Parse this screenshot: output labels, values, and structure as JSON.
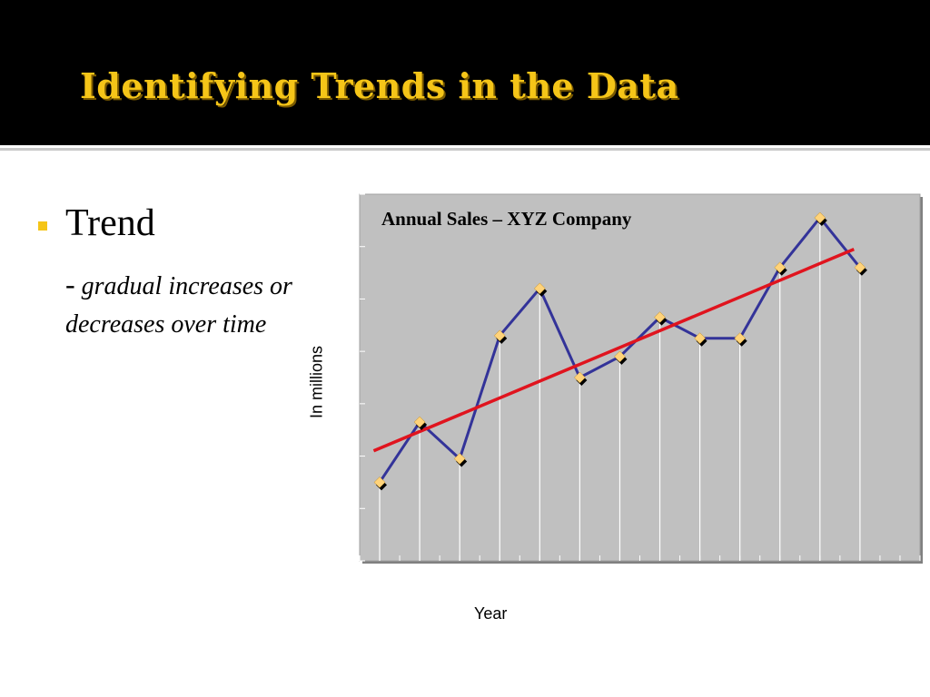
{
  "slide": {
    "title": "Identifying Trends in the Data",
    "bullet": {
      "heading": "Trend",
      "dash": "-",
      "description": "gradual increases or decreases over time"
    }
  },
  "colors": {
    "header_bg": "#000000",
    "title": "#f5c518",
    "bullet": "#f5c518",
    "plot_bg": "#c0c0c0",
    "series_line": "#333399",
    "trend_line": "#e0141e",
    "marker": "#ffd37a"
  },
  "chart_data": {
    "type": "line",
    "title": "Annual Sales – XYZ Company",
    "xlabel": "Year",
    "ylabel": "In millions",
    "x": [
      1,
      2,
      3,
      4,
      5,
      6,
      7,
      8,
      9,
      10,
      11,
      12,
      13
    ],
    "xlim": [
      0.5,
      14.5
    ],
    "ylim": [
      0,
      7
    ],
    "grid": "vertical lines, white",
    "legend": "none",
    "series": [
      {
        "values": [
          1.5,
          2.65,
          1.95,
          4.3,
          5.2,
          3.5,
          3.9,
          4.65,
          4.25,
          4.25,
          5.6,
          6.55,
          5.6
        ]
      }
    ],
    "trend_line": {
      "x": [
        0.85,
        12.85
      ],
      "y": [
        2.1,
        5.95
      ]
    }
  }
}
